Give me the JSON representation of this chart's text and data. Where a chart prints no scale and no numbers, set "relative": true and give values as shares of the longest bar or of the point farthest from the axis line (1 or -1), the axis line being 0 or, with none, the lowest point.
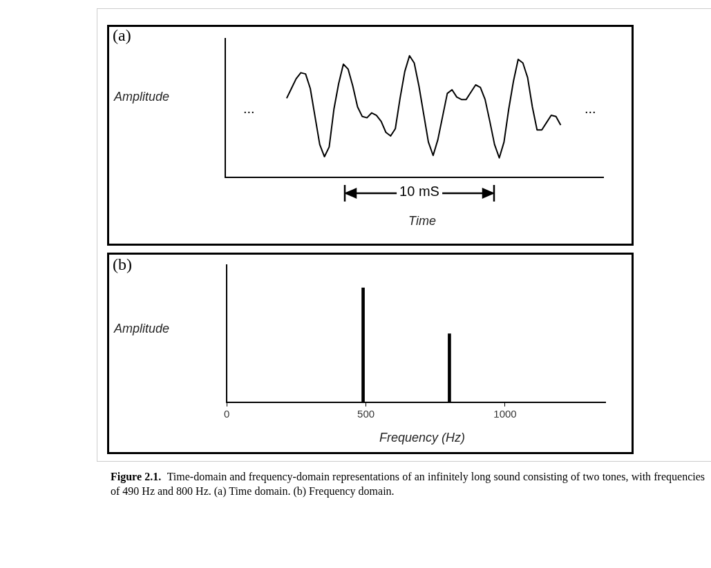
{
  "chart_data": [
    {
      "type": "line",
      "title": "(a)",
      "ylabel": "Amplitude",
      "xlabel": "Time",
      "relative": true,
      "tick_labels": false,
      "grid": false,
      "legend": false,
      "marker": "none",
      "color": "#000000",
      "categories": [
        null,
        null,
        null,
        null,
        null,
        null,
        null,
        null,
        null,
        null,
        null,
        null,
        null,
        null,
        null,
        null,
        null,
        null,
        null,
        null,
        null,
        null,
        null,
        null,
        null,
        null,
        null,
        null,
        null,
        null,
        null,
        null,
        null,
        null,
        null,
        null,
        null,
        null,
        null,
        null,
        null,
        null,
        null,
        null,
        null,
        null,
        null,
        null,
        null,
        null,
        null,
        null,
        null,
        null,
        null,
        null,
        null,
        null,
        null,
        null,
        null,
        null,
        null,
        null,
        null,
        null,
        null,
        null,
        null,
        null,
        null,
        null,
        null,
        null,
        null,
        null,
        null,
        null,
        null,
        null,
        null
      ],
      "values": [
        null,
        null,
        null,
        null,
        null,
        null,
        null,
        null,
        null,
        null,
        null,
        null,
        null,
        0.65,
        0.73,
        0.81,
        0.86,
        0.85,
        0.73,
        0.5,
        0.27,
        0.17,
        0.25,
        0.56,
        0.77,
        0.93,
        0.89,
        0.75,
        0.58,
        0.5,
        0.49,
        0.53,
        0.51,
        0.46,
        0.37,
        0.34,
        0.4,
        0.65,
        0.87,
        1.0,
        0.94,
        0.75,
        0.52,
        0.29,
        0.18,
        0.31,
        0.5,
        0.69,
        0.72,
        0.66,
        0.64,
        0.64,
        0.7,
        0.76,
        0.74,
        0.64,
        0.46,
        0.27,
        0.16,
        0.29,
        0.56,
        0.79,
        0.97,
        0.94,
        0.82,
        0.58,
        0.39,
        0.39,
        0.45,
        0.51,
        0.5,
        0.43,
        null,
        null,
        null,
        null,
        null,
        null,
        null,
        null,
        null
      ],
      "annotations": [
        "...",
        "...",
        "10 mS"
      ]
    },
    {
      "type": "bar",
      "title": "(b)",
      "ylabel": "Amplitude",
      "xlabel": "Frequency (Hz)",
      "relative": true,
      "tick_labels": "x",
      "grid": false,
      "legend": false,
      "color": "#000000",
      "x": [
        490,
        800
      ],
      "values": [
        1,
        0.6
      ],
      "xlim": [
        0,
        1360
      ],
      "xticks": [
        0,
        500,
        1000
      ],
      "annotations": [
        "Figure 2.1.",
        "Time-domain and frequency-domain representations of an infinitely long sound consisting of two tones, with frequencies of 490 Hz and 800 Hz. (a) Time domain. (b) Frequency domain."
      ]
    }
  ]
}
